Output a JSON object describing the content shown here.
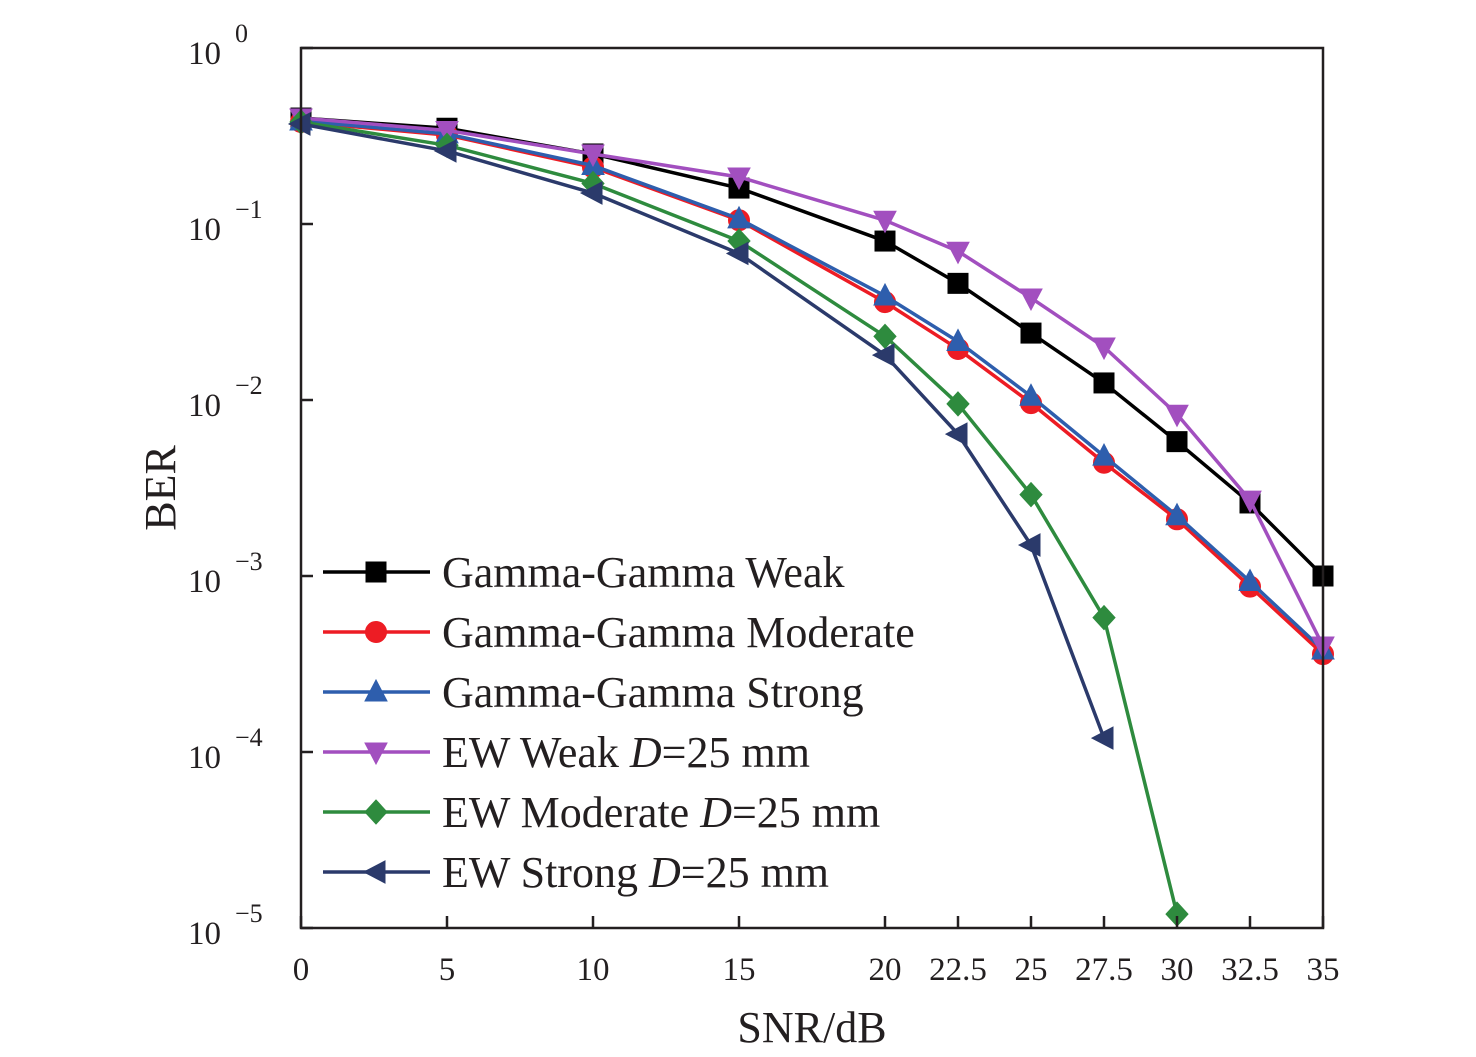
{
  "chart_data": {
    "type": "line",
    "title": "",
    "xlabel": "SNR/dB",
    "ylabel": "BER",
    "xlim": [
      0,
      35
    ],
    "ylim": [
      1e-05,
      1
    ],
    "yscale": "log",
    "grid": false,
    "legend_position": "bottom-left",
    "x_ticks": [
      {
        "value": 0,
        "label": "0"
      },
      {
        "value": 5,
        "label": "5"
      },
      {
        "value": 10,
        "label": "10"
      },
      {
        "value": 15,
        "label": "15"
      },
      {
        "value": 20,
        "label": "20"
      },
      {
        "value": 22.5,
        "label": "22.5"
      },
      {
        "value": 25,
        "label": "25"
      },
      {
        "value": 27.5,
        "label": "27.5"
      },
      {
        "value": 30,
        "label": "30"
      },
      {
        "value": 32.5,
        "label": "32.5"
      },
      {
        "value": 35,
        "label": "35"
      }
    ],
    "y_ticks": [
      {
        "exponent": 0,
        "base": "10",
        "exp_label": "0"
      },
      {
        "exponent": -1,
        "base": "10",
        "exp_label": "−1"
      },
      {
        "exponent": -2,
        "base": "10",
        "exp_label": "−2"
      },
      {
        "exponent": -3,
        "base": "10",
        "exp_label": "−3"
      },
      {
        "exponent": -4,
        "base": "10",
        "exp_label": "−4"
      },
      {
        "exponent": -5,
        "base": "10",
        "exp_label": "−5"
      }
    ],
    "series": [
      {
        "name": "Gamma-Gamma Weak",
        "legend_parts": [
          {
            "text": "Gamma-Gamma Weak",
            "italic": false
          }
        ],
        "color": "#000000",
        "marker": "square",
        "x": [
          0,
          5,
          10,
          15,
          20,
          22.5,
          25,
          27.5,
          30,
          32.5,
          35
        ],
        "y": [
          0.4,
          0.35,
          0.25,
          0.16,
          0.08,
          0.046,
          0.024,
          0.0125,
          0.0058,
          0.0026,
          0.001
        ]
      },
      {
        "name": "Gamma-Gamma Moderate",
        "legend_parts": [
          {
            "text": "Gamma-Gamma Moderate",
            "italic": false
          }
        ],
        "color": "#ed1c24",
        "marker": "circle",
        "x": [
          0,
          5,
          10,
          15,
          20,
          22.5,
          25,
          27.5,
          30,
          32.5,
          35
        ],
        "y": [
          0.38,
          0.32,
          0.21,
          0.105,
          0.036,
          0.0195,
          0.0096,
          0.0044,
          0.0021,
          0.00087,
          0.00036
        ]
      },
      {
        "name": "Gamma-Gamma Strong",
        "legend_parts": [
          {
            "text": "Gamma-Gamma Strong",
            "italic": false
          }
        ],
        "color": "#2e5ead",
        "marker": "triangle-up",
        "x": [
          0,
          5,
          10,
          15,
          20,
          22.5,
          25,
          27.5,
          30,
          32.5,
          35
        ],
        "y": [
          0.385,
          0.325,
          0.215,
          0.107,
          0.039,
          0.0215,
          0.0105,
          0.0048,
          0.0022,
          0.00093,
          0.00038
        ]
      },
      {
        "name": "EW Weak D=25 mm",
        "legend_parts": [
          {
            "text": "EW Weak ",
            "italic": false
          },
          {
            "text": "D",
            "italic": true
          },
          {
            "text": "=25 mm",
            "italic": false
          }
        ],
        "color": "#a24fbf",
        "marker": "triangle-down",
        "x": [
          0,
          5,
          10,
          15,
          20,
          22.5,
          25,
          27.5,
          30,
          32.5,
          35
        ],
        "y": [
          0.4,
          0.34,
          0.25,
          0.185,
          0.105,
          0.07,
          0.038,
          0.02,
          0.0083,
          0.0027,
          0.0004
        ]
      },
      {
        "name": "EW Moderate D=25 mm",
        "legend_parts": [
          {
            "text": "EW Moderate ",
            "italic": false
          },
          {
            "text": "D",
            "italic": true
          },
          {
            "text": "=25 mm",
            "italic": false
          }
        ],
        "color": "#2e8b3e",
        "marker": "diamond",
        "x": [
          0,
          5,
          10,
          15,
          20,
          22.5,
          25,
          27.5,
          30
        ],
        "y": [
          0.38,
          0.28,
          0.17,
          0.08,
          0.023,
          0.0095,
          0.0029,
          0.00058,
          1.2e-05
        ]
      },
      {
        "name": "EW Strong D=25 mm",
        "legend_parts": [
          {
            "text": "EW Strong ",
            "italic": false
          },
          {
            "text": "D",
            "italic": true
          },
          {
            "text": "=25 mm",
            "italic": false
          }
        ],
        "color": "#2b3a6b",
        "marker": "triangle-left",
        "x": [
          0,
          5,
          10,
          15,
          20,
          22.5,
          25,
          27.5
        ],
        "y": [
          0.37,
          0.26,
          0.15,
          0.068,
          0.018,
          0.0064,
          0.0015,
          0.00012
        ]
      }
    ]
  }
}
